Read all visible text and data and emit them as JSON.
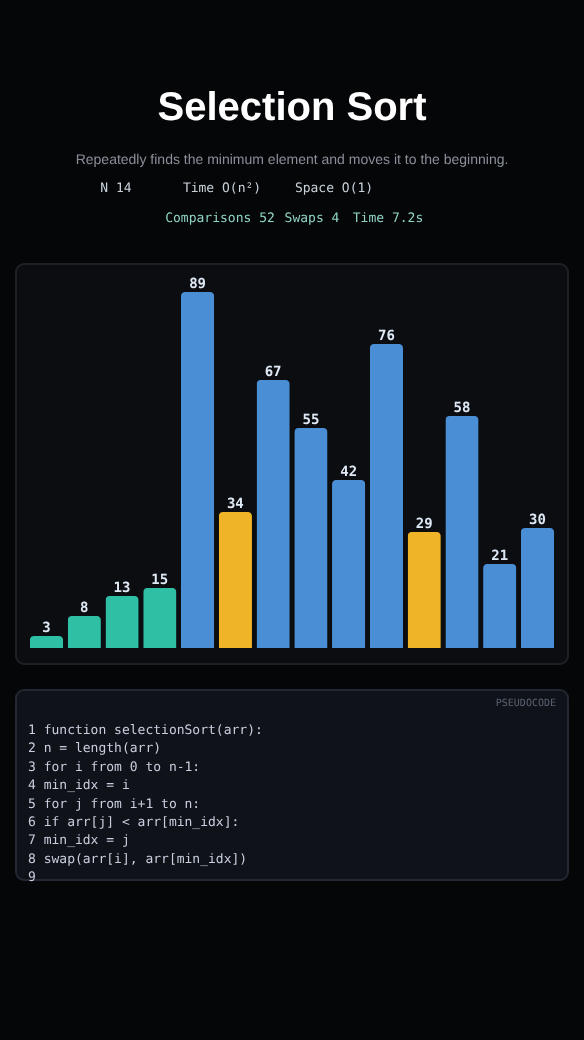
{
  "chart_data": {
    "type": "bar",
    "title": "Selection Sort",
    "subtitle": "Repeatedly finds the minimum element and moves it to the beginning.",
    "categories": [
      null,
      null,
      null,
      null,
      null,
      null,
      null,
      null,
      null,
      null,
      null,
      null,
      null,
      null
    ],
    "values": [
      3,
      8,
      13,
      15,
      89,
      34,
      67,
      55,
      42,
      76,
      29,
      58,
      21,
      30
    ],
    "colors": [
      "#2ebfa5",
      "#2ebfa5",
      "#2ebfa5",
      "#2ebfa5",
      "#4a8fd6",
      "#f0b429",
      "#4a8fd6",
      "#4a8fd6",
      "#4a8fd6",
      "#4a8fd6",
      "#f0b429",
      "#4a8fd6",
      "#4a8fd6",
      "#4a8fd6"
    ],
    "data_labels": true,
    "annotations": [
      "N 14",
      "Time O(n²)",
      "Space O(1)",
      "Comparisons 52",
      "Swaps 4",
      "Time 7.2s",
      "PSEUDOCODE",
      "1  function selectionSort(arr):",
      "2    n = length(arr)",
      "3    for i from 0 to n-1:",
      "4      min_idx = i",
      "5      for j from i+1 to n:",
      "6        if arr[j] < arr[min_idx]:",
      "7          min_idx = j",
      "8      swap(arr[i], arr[min_idx])",
      "9"
    ]
  }
}
